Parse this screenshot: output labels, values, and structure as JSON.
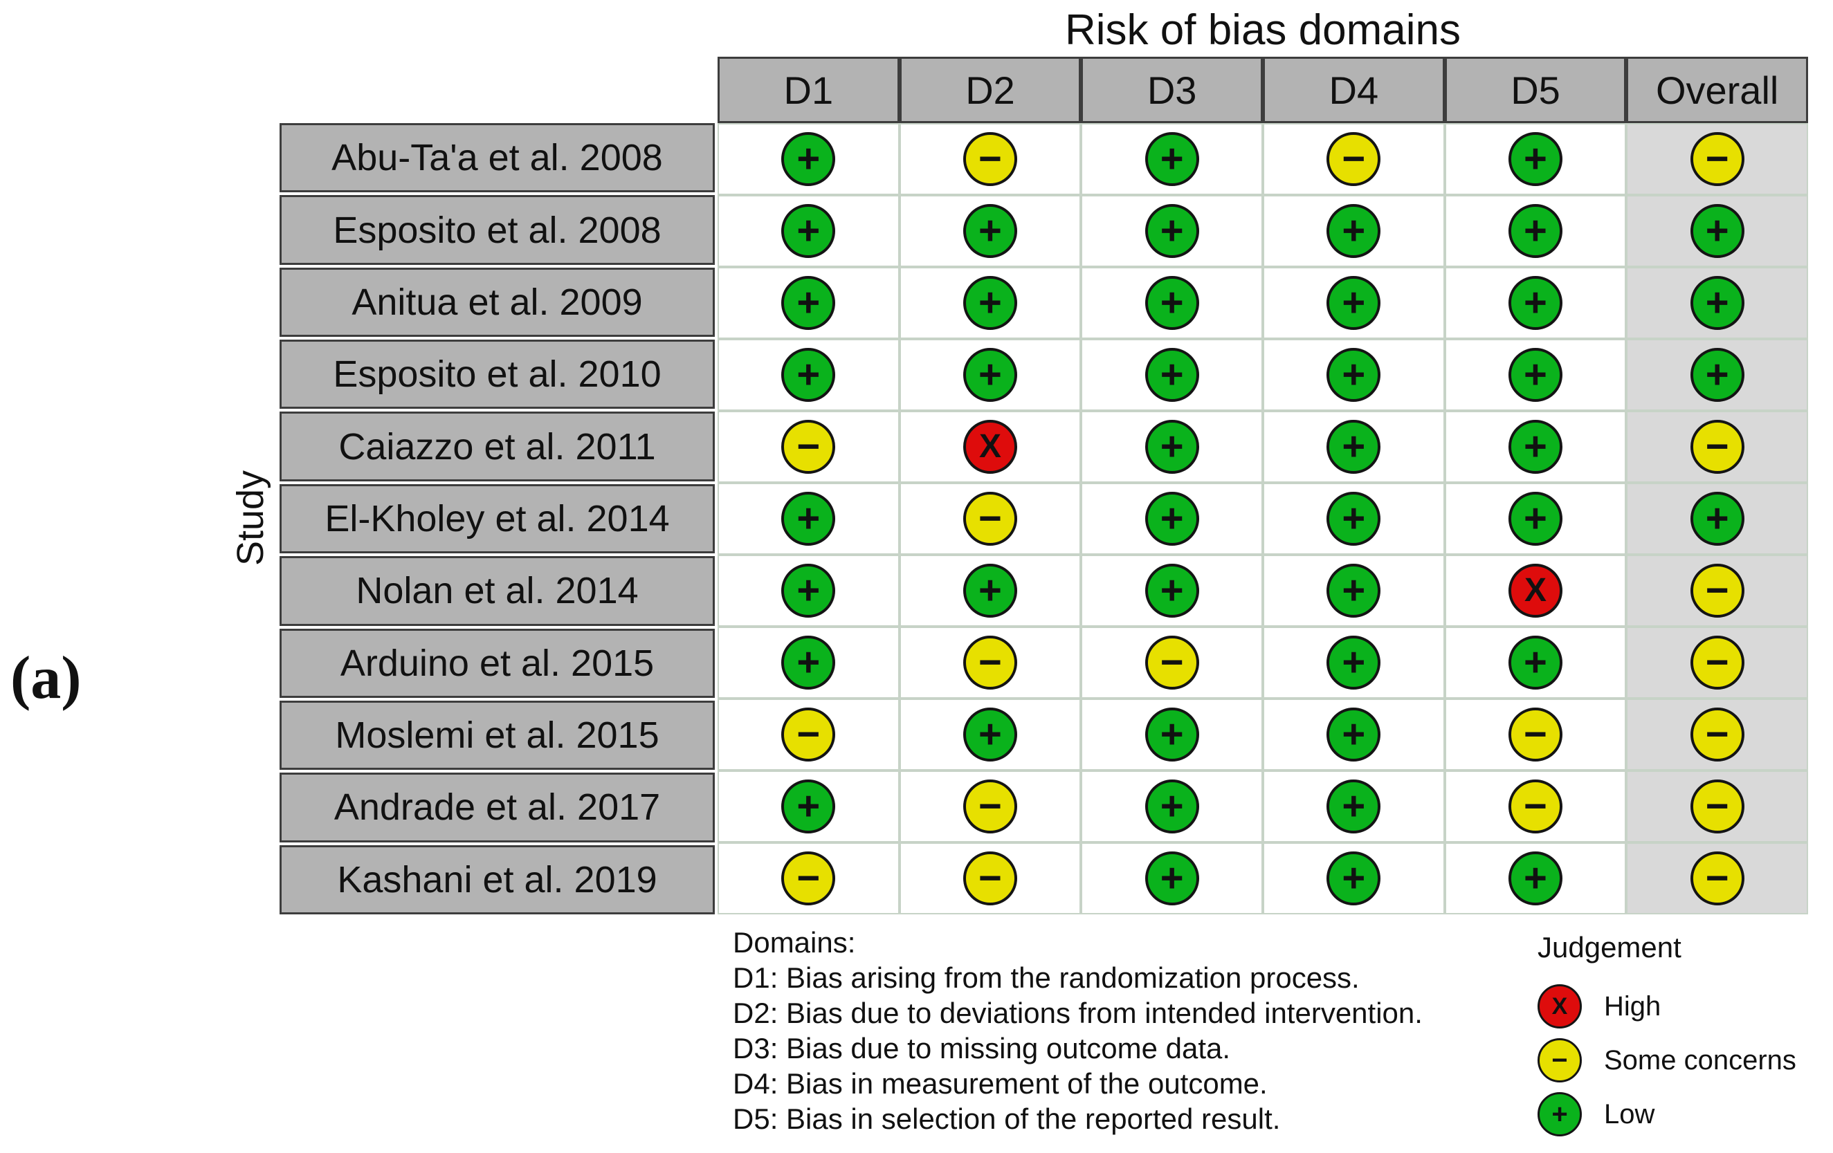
{
  "figure_label": "(a)",
  "colors": {
    "header_fill": "#b3b3b3",
    "overall_fill": "#d9d9d9",
    "grid_line": "#c7d3c7",
    "dark_border": "#3d3d3d",
    "high_red": "#de0c0c",
    "some_concerns_yellow": "#e7e000",
    "low_green": "#0ab21c"
  },
  "chart_data": {
    "type": "table",
    "title": "Risk of bias domains",
    "row_axis_label": "Study",
    "columns": [
      "D1",
      "D2",
      "D3",
      "D4",
      "D5",
      "Overall"
    ],
    "rows": [
      {
        "study": "Abu-Ta'a et al. 2008",
        "judgements": [
          "low",
          "some",
          "low",
          "some",
          "low",
          "some"
        ]
      },
      {
        "study": "Esposito et al. 2008",
        "judgements": [
          "low",
          "low",
          "low",
          "low",
          "low",
          "low"
        ]
      },
      {
        "study": "Anitua et al. 2009",
        "judgements": [
          "low",
          "low",
          "low",
          "low",
          "low",
          "low"
        ]
      },
      {
        "study": "Esposito et al. 2010",
        "judgements": [
          "low",
          "low",
          "low",
          "low",
          "low",
          "low"
        ]
      },
      {
        "study": "Caiazzo et al. 2011",
        "judgements": [
          "some",
          "high",
          "low",
          "low",
          "low",
          "some"
        ]
      },
      {
        "study": "El-Kholey et al. 2014",
        "judgements": [
          "low",
          "some",
          "low",
          "low",
          "low",
          "low"
        ]
      },
      {
        "study": "Nolan et al. 2014",
        "judgements": [
          "low",
          "low",
          "low",
          "low",
          "high",
          "some"
        ]
      },
      {
        "study": "Arduino et al. 2015",
        "judgements": [
          "low",
          "some",
          "some",
          "low",
          "low",
          "some"
        ]
      },
      {
        "study": "Moslemi et al. 2015",
        "judgements": [
          "some",
          "low",
          "low",
          "low",
          "some",
          "some"
        ]
      },
      {
        "study": "Andrade et al. 2017",
        "judgements": [
          "low",
          "some",
          "low",
          "low",
          "some",
          "some"
        ]
      },
      {
        "study": "Kashani et al. 2019",
        "judgements": [
          "some",
          "some",
          "low",
          "low",
          "low",
          "some"
        ]
      }
    ],
    "judgement_styles": {
      "high": {
        "label": "High",
        "symbol": "X",
        "color": "#de0c0c"
      },
      "some": {
        "label": "Some concerns",
        "symbol": "−",
        "color": "#e7e000"
      },
      "low": {
        "label": "Low",
        "symbol": "+",
        "color": "#0ab21c"
      }
    },
    "legend_title": "Judgement",
    "legend_order": [
      "high",
      "some",
      "low"
    ],
    "footnote_heading": "Domains:",
    "footnotes": [
      "D1: Bias arising from the randomization process.",
      "D2: Bias due to deviations from intended intervention.",
      "D3: Bias due to missing outcome data.",
      "D4: Bias in measurement of the outcome.",
      "D5: Bias in selection of the reported result."
    ]
  }
}
